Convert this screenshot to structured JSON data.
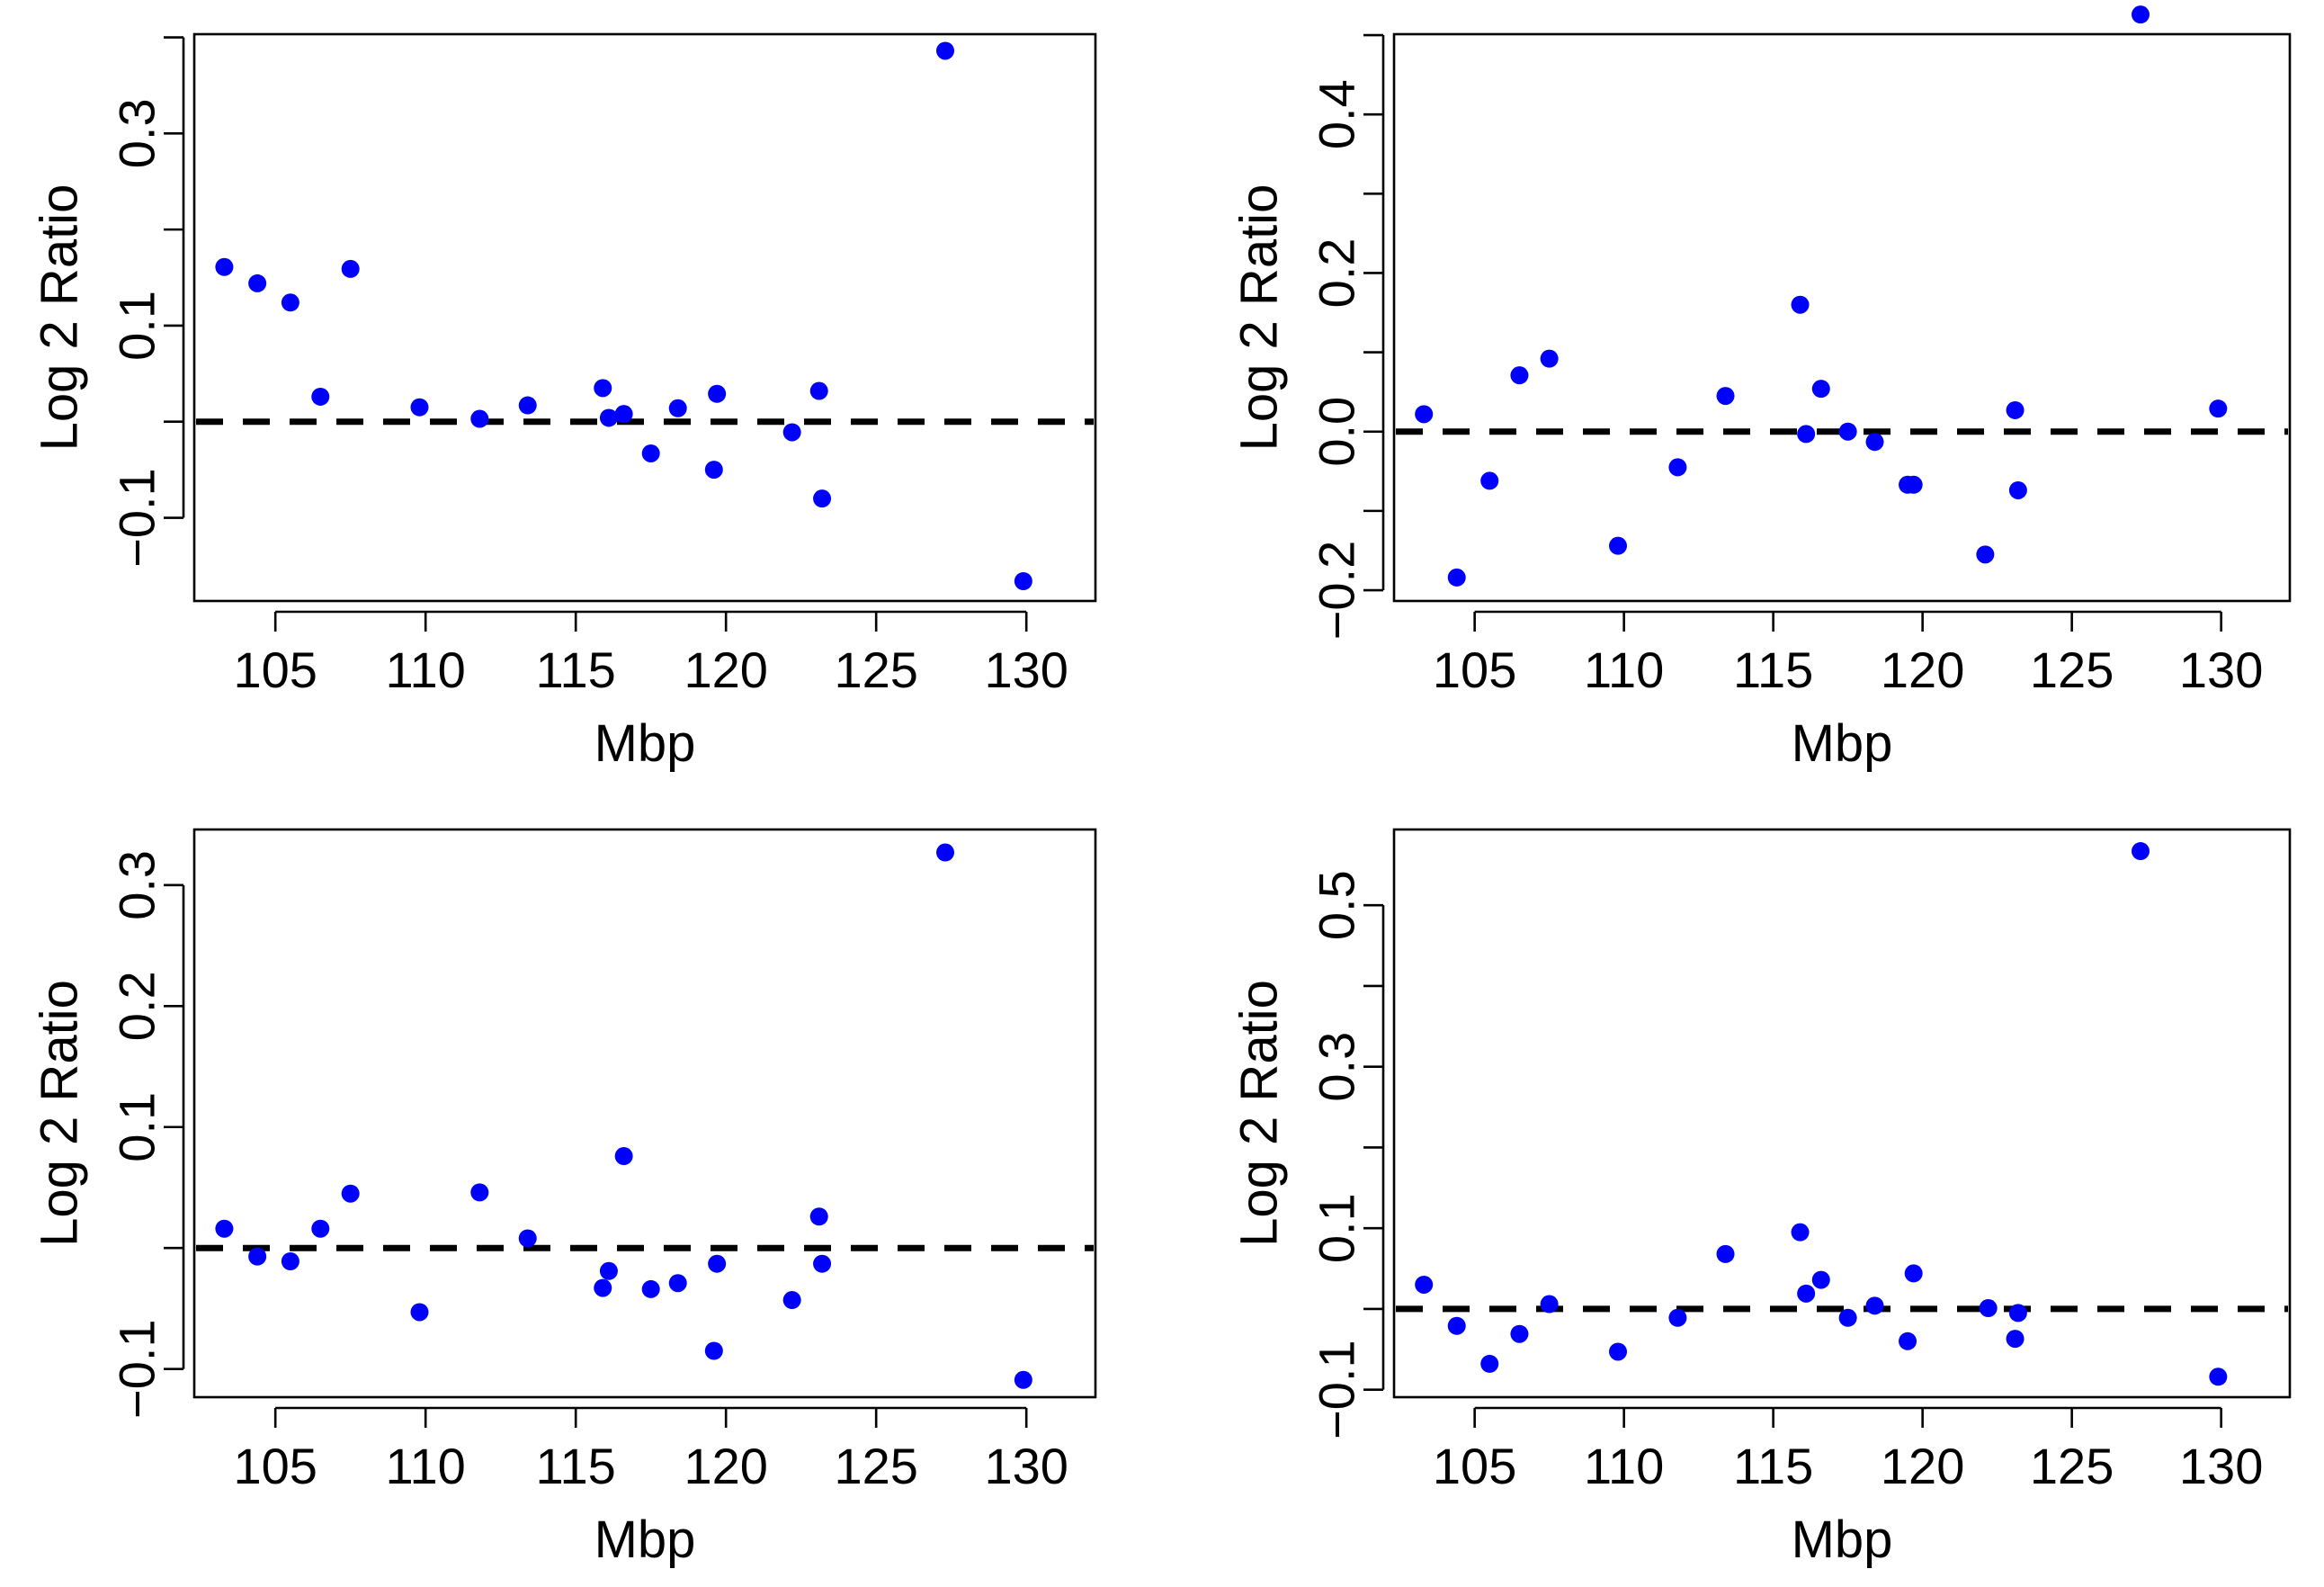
{
  "colors": {
    "points": "#0000ff",
    "axes": "#000000",
    "background": "#ffffff"
  },
  "chart_data": [
    {
      "type": "scatter",
      "panel": "top-left",
      "xlabel": "Mbp",
      "ylabel": "Log 2 Ratio",
      "xlim": [
        102.3,
        132.3
      ],
      "ylim": [
        -0.1866,
        0.4033
      ],
      "x_ticks": [
        105,
        110,
        115,
        120,
        125,
        130
      ],
      "y_ticks": [
        -0.1,
        0.1,
        0.3
      ],
      "y_minor_ticks": [
        -0.1,
        0.0,
        0.1,
        0.2,
        0.3,
        0.4
      ],
      "reference_line": {
        "y": 0.0,
        "style": "dashed"
      },
      "grid": false,
      "series": [
        {
          "x": [
            103.3,
            104.4,
            105.5,
            106.5,
            107.5,
            109.8,
            111.8,
            113.4,
            115.9,
            116.1,
            116.6,
            117.5,
            118.4,
            119.6,
            119.7,
            122.2,
            123.1,
            123.2,
            127.3,
            129.9
          ],
          "y": [
            0.161,
            0.144,
            0.124,
            0.026,
            0.159,
            0.015,
            0.003,
            0.017,
            0.035,
            0.004,
            0.008,
            -0.033,
            0.014,
            -0.05,
            0.029,
            -0.011,
            0.032,
            -0.08,
            0.386,
            -0.166
          ]
        }
      ]
    },
    {
      "type": "scatter",
      "panel": "top-right",
      "xlabel": "Mbp",
      "ylabel": "Log 2 Ratio",
      "xlim": [
        102.3,
        132.3
      ],
      "ylim": [
        -0.2136,
        0.5012
      ],
      "x_ticks": [
        105,
        110,
        115,
        120,
        125,
        130
      ],
      "y_ticks": [
        -0.2,
        0.0,
        0.2,
        0.4
      ],
      "y_minor_ticks": [
        -0.2,
        -0.1,
        0.0,
        0.1,
        0.2,
        0.3,
        0.4,
        0.5
      ],
      "reference_line": {
        "y": 0.0,
        "style": "dashed"
      },
      "grid": false,
      "series": [
        {
          "x": [
            103.3,
            104.4,
            105.5,
            106.5,
            107.5,
            109.8,
            111.8,
            113.4,
            115.9,
            116.1,
            116.6,
            117.5,
            118.4,
            119.5,
            119.7,
            122.1,
            123.1,
            123.2,
            127.3,
            129.9
          ],
          "y": [
            0.022,
            -0.184,
            -0.062,
            0.071,
            0.092,
            -0.144,
            -0.045,
            0.045,
            0.16,
            -0.003,
            0.054,
            0.0,
            -0.013,
            -0.067,
            -0.067,
            -0.155,
            0.027,
            -0.074,
            0.526,
            0.029
          ]
        }
      ]
    },
    {
      "type": "scatter",
      "panel": "bottom-left",
      "xlabel": "Mbp",
      "ylabel": "Log 2 Ratio",
      "xlim": [
        102.3,
        132.3
      ],
      "ylim": [
        -0.1233,
        0.346
      ],
      "x_ticks": [
        105,
        110,
        115,
        120,
        125,
        130
      ],
      "y_ticks": [
        -0.1,
        0.1,
        0.2,
        0.3
      ],
      "y_minor_ticks": [
        -0.1,
        0.0,
        0.1,
        0.2,
        0.3
      ],
      "reference_line": {
        "y": 0.0,
        "style": "dashed"
      },
      "grid": false,
      "series": [
        {
          "x": [
            103.3,
            104.4,
            105.5,
            106.5,
            107.5,
            109.8,
            111.8,
            113.4,
            115.9,
            116.1,
            116.6,
            117.5,
            118.4,
            119.6,
            119.7,
            122.2,
            123.1,
            123.2,
            127.3,
            129.9
          ],
          "y": [
            0.016,
            -0.007,
            -0.011,
            0.016,
            0.045,
            -0.053,
            0.046,
            0.008,
            -0.033,
            -0.019,
            0.076,
            -0.034,
            -0.029,
            -0.085,
            -0.013,
            -0.043,
            0.026,
            -0.013,
            0.327,
            -0.109
          ]
        }
      ]
    },
    {
      "type": "scatter",
      "panel": "bottom-right",
      "xlabel": "Mbp",
      "ylabel": "Log 2 Ratio",
      "xlim": [
        102.3,
        132.3
      ],
      "ylim": [
        -0.1093,
        0.5938
      ],
      "x_ticks": [
        105,
        110,
        115,
        120,
        125,
        130
      ],
      "y_ticks": [
        -0.1,
        0.1,
        0.3,
        0.5
      ],
      "y_minor_ticks": [
        -0.1,
        0.0,
        0.1,
        0.2,
        0.3,
        0.4,
        0.5
      ],
      "reference_line": {
        "y": 0.0,
        "style": "dashed"
      },
      "grid": false,
      "series": [
        {
          "x": [
            103.3,
            104.4,
            105.5,
            106.5,
            107.5,
            109.8,
            111.8,
            113.4,
            115.9,
            116.1,
            116.6,
            117.5,
            118.4,
            119.5,
            119.7,
            122.2,
            123.1,
            123.2,
            127.3,
            129.9
          ],
          "y": [
            0.03,
            -0.021,
            -0.068,
            -0.031,
            0.006,
            -0.053,
            -0.011,
            0.068,
            0.095,
            0.019,
            0.036,
            -0.011,
            0.004,
            -0.04,
            0.044,
            0.001,
            -0.037,
            -0.005,
            0.567,
            -0.084
          ]
        }
      ]
    }
  ]
}
